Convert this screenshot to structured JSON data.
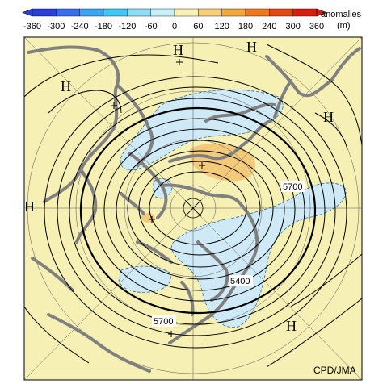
{
  "colorbar": {
    "ticks": [
      "-360",
      "-300",
      "-240",
      "-180",
      "-120",
      "-60",
      "0",
      "60",
      "120",
      "180",
      "240",
      "300",
      "360"
    ],
    "title_line1": "anomalies",
    "title_line2": "(m)",
    "colors": [
      "#2b3fd0",
      "#3a6ee8",
      "#3fa4f0",
      "#46c6f2",
      "#8fdcf5",
      "#c8eef8",
      "#f7f0b8",
      "#f7f0b8",
      "#f5cf7a",
      "#f0a840",
      "#ea7a20",
      "#e04a18",
      "#d42010"
    ]
  },
  "map": {
    "background": "#f6f0b4",
    "negative_anomaly_color": "#cfeaf6",
    "positive_anomaly_color": "#f3c97a",
    "high_labels": [
      "H",
      "H",
      "H",
      "H",
      "H",
      "H"
    ],
    "contour_labels": [
      "5700",
      "5400",
      "5700"
    ],
    "credit": "CPD/JMA"
  }
}
